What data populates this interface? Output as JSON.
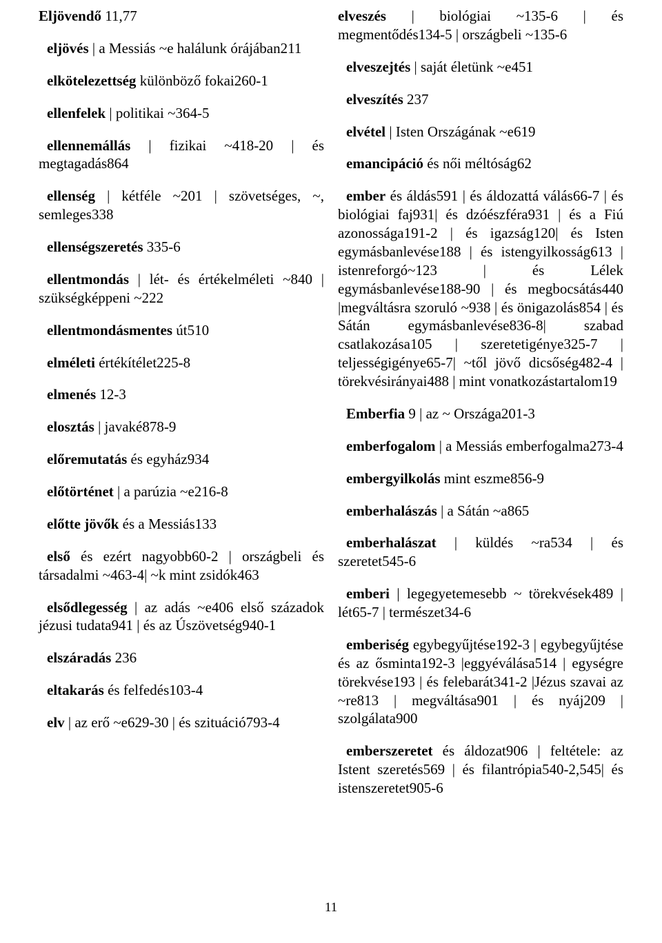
{
  "pageNumber": "11",
  "left": [
    "<b>Eljövendő</b> 11,77",
    "<b>eljövés</b> | a Messiás ~e halálunk órájában211",
    "<b>elkötelezettség</b> különböző fokai260-1",
    "<b>ellenfelek</b> | politikai ~364-5",
    "<b>ellennemállás</b> | fizikai ~418-20 | és megtagadás864",
    "<b>ellenség</b> | kétféle ~201 | szövetséges, ~, semleges338",
    "<b>ellenségszeretés</b> 335-6",
    "<b>ellentmondás</b> | lét- és értékelméleti ~840 | szükségképpeni ~222",
    "<b>ellentmondásmentes</b> út510",
    "<b>elméleti</b> értékítélet225-8",
    "<b>elmenés</b> 12-3",
    "<b>elosztás</b> | javaké878-9",
    "<b>előremutatás</b> és egyház934",
    "<b>előtörténet</b> | a parúzia ~e216-8",
    "<b>előtte jövők</b> és a Messiás133",
    "<b>első</b> és ezért nagyobb60-2 | országbeli és társadalmi ~463-4| ~k mint zsidók463",
    "<b>elsődlegesség</b> | az adás ~e406 első századok jézusi tudata941 | és az Úszövetség940-1",
    "<b>elszáradás</b> 236",
    "<b>eltakarás</b> és felfedés103-4",
    "<b>elv</b> | az erő ~e629-30 | és szituáció793-4"
  ],
  "right": [
    "<b>elveszés</b> | biológiai ~135-6 | és megmentődés134-5 | országbeli ~135-6",
    "<b>elveszejtés</b> | saját életünk ~e451",
    "<b>elveszítés</b> 237",
    "<b>elvétel</b> | Isten Országának ~e619",
    "<b>emancipáció</b> és női méltóság62",
    "<b>ember</b> és áldás591 | és áldozattá válás66-7 | és biológiai faj931| és dzóészféra931 | és a Fiú azonossága191-2 | és igazság120| és Isten egymásbanlevése188 | és istengyilkosság613 | istenreforgó~123 | és Lélek egymásbanlevése188-90 | és megbocsátás440 |megváltásra szoruló ~938 | és önigazolás854 | és Sátán egymásbanlevése836-8| szabad csatlakozása105 | szeretetigénye325-7 | teljességigénye65-7| ~től jövő dicsőség482-4 | törekvésirányai488 | mint vonatkozástartalom19",
    "<b>Emberfia</b> 9 | az ~ Országa201-3",
    "<b>emberfogalom</b> | a Messiás emberfogalma273-4",
    "<b>embergyilkolás</b> mint eszme856-9",
    "<b>emberhalászás</b> | a Sátán ~a865",
    "<b>emberhalászat</b> | küldés ~ra534 | és szeretet545-6",
    "<b>emberi</b> | legegyetemesebb ~ törekvések489 | lét65-7 | természet34-6",
    "<b>emberiség</b> egybegyűjtése192-3 | egybegyűjtése és az ősminta192-3 |eggyéválása514 | egységre törekvése193 | és felebarát341-2 |Jézus szavai az ~re813 | megváltása901 | és nyáj209 | szolgálata900",
    "<b>emberszeretet</b> és áldozat906 | feltétele: az Istent szeretés569 | és filantrópia540-2,545| és istenszeretet905-6"
  ]
}
